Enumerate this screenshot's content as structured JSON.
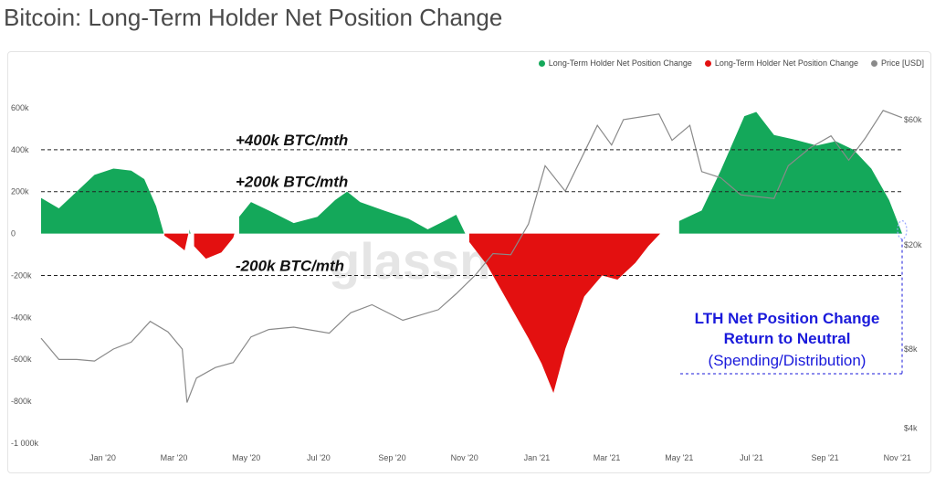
{
  "title": "Bitcoin: Long-Term Holder Net Position Change",
  "watermark": "glassnode",
  "legend": [
    {
      "label": "Long-Term Holder Net Position Change",
      "color": "#14a85a"
    },
    {
      "label": "Long-Term Holder Net Position Change",
      "color": "#e31010"
    },
    {
      "label": "Price [USD]",
      "color": "#8a8a8a"
    }
  ],
  "chart_data": {
    "type": "area",
    "x_ticks": [
      "Jan '20",
      "Mar '20",
      "May '20",
      "Jul '20",
      "Sep '20",
      "Nov '20",
      "Jan '21",
      "Mar '21",
      "May '21",
      "Jul '21",
      "Sep '21",
      "Nov '21"
    ],
    "x_range": [
      "2019-11-10",
      "2021-11-05"
    ],
    "y_left_ticks": [
      "600k",
      "400k",
      "200k",
      "0",
      "-200k",
      "-400k",
      "-600k",
      "-800k",
      "-1 000k"
    ],
    "y_left_range": [
      -1000000,
      700000
    ],
    "y_right_ticks": [
      "$60k",
      "$20k",
      "$8k",
      "$4k"
    ],
    "y_right_range": [
      3500,
      80000
    ],
    "y_right_scale": "log",
    "reference_lines": [
      {
        "value": 400000,
        "label": "+400k BTC/mth"
      },
      {
        "value": 200000,
        "label": "+200k BTC/mth"
      },
      {
        "value": -200000,
        "label": "-200k BTC/mth"
      }
    ],
    "series": [
      {
        "name": "Long-Term Holder Net Position Change",
        "positive_color": "#14a85a",
        "negative_color": "#e31010",
        "points": [
          [
            "2019-11-10",
            170000
          ],
          [
            "2019-11-25",
            120000
          ],
          [
            "2019-12-10",
            200000
          ],
          [
            "2019-12-25",
            280000
          ],
          [
            "2020-01-10",
            310000
          ],
          [
            "2020-01-25",
            300000
          ],
          [
            "2020-02-05",
            260000
          ],
          [
            "2020-02-15",
            130000
          ],
          [
            "2020-02-22",
            -10000
          ],
          [
            "2020-03-01",
            -40000
          ],
          [
            "2020-03-10",
            -80000
          ],
          [
            "2020-03-14",
            20000
          ],
          [
            "2020-03-18",
            -60000
          ],
          [
            "2020-03-28",
            -120000
          ],
          [
            "2020-04-10",
            -90000
          ],
          [
            "2020-04-20",
            -20000
          ],
          [
            "2020-04-25",
            80000
          ],
          [
            "2020-05-05",
            150000
          ],
          [
            "2020-05-20",
            110000
          ],
          [
            "2020-06-10",
            50000
          ],
          [
            "2020-06-30",
            80000
          ],
          [
            "2020-07-15",
            160000
          ],
          [
            "2020-07-25",
            200000
          ],
          [
            "2020-08-05",
            150000
          ],
          [
            "2020-08-25",
            110000
          ],
          [
            "2020-09-15",
            70000
          ],
          [
            "2020-10-01",
            20000
          ],
          [
            "2020-10-15",
            60000
          ],
          [
            "2020-10-25",
            90000
          ],
          [
            "2020-11-05",
            -40000
          ],
          [
            "2020-11-20",
            -150000
          ],
          [
            "2020-12-10",
            -350000
          ],
          [
            "2020-12-25",
            -500000
          ],
          [
            "2021-01-05",
            -620000
          ],
          [
            "2021-01-15",
            -760000
          ],
          [
            "2021-01-25",
            -550000
          ],
          [
            "2021-02-10",
            -300000
          ],
          [
            "2021-02-25",
            -200000
          ],
          [
            "2021-03-10",
            -220000
          ],
          [
            "2021-03-25",
            -140000
          ],
          [
            "2021-04-05",
            -60000
          ],
          [
            "2021-04-15",
            0
          ],
          [
            "2021-05-01",
            60000
          ],
          [
            "2021-05-20",
            110000
          ],
          [
            "2021-06-05",
            300000
          ],
          [
            "2021-06-25",
            560000
          ],
          [
            "2021-07-05",
            580000
          ],
          [
            "2021-07-20",
            470000
          ],
          [
            "2021-08-05",
            450000
          ],
          [
            "2021-08-25",
            420000
          ],
          [
            "2021-09-10",
            440000
          ],
          [
            "2021-09-25",
            400000
          ],
          [
            "2021-10-10",
            310000
          ],
          [
            "2021-10-25",
            160000
          ],
          [
            "2021-11-05",
            0
          ]
        ]
      },
      {
        "name": "Price [USD]",
        "color": "#8a8a8a",
        "points": [
          [
            "2019-11-10",
            8800
          ],
          [
            "2019-11-25",
            7300
          ],
          [
            "2019-12-10",
            7300
          ],
          [
            "2019-12-25",
            7200
          ],
          [
            "2020-01-10",
            8000
          ],
          [
            "2020-01-25",
            8500
          ],
          [
            "2020-02-10",
            10200
          ],
          [
            "2020-02-25",
            9300
          ],
          [
            "2020-03-08",
            8000
          ],
          [
            "2020-03-12",
            5000
          ],
          [
            "2020-03-20",
            6200
          ],
          [
            "2020-04-05",
            6800
          ],
          [
            "2020-04-20",
            7100
          ],
          [
            "2020-05-05",
            8900
          ],
          [
            "2020-05-20",
            9500
          ],
          [
            "2020-06-10",
            9700
          ],
          [
            "2020-07-10",
            9200
          ],
          [
            "2020-07-28",
            11000
          ],
          [
            "2020-08-15",
            11800
          ],
          [
            "2020-09-10",
            10300
          ],
          [
            "2020-10-10",
            11300
          ],
          [
            "2020-10-25",
            13000
          ],
          [
            "2020-11-10",
            15300
          ],
          [
            "2020-11-25",
            18500
          ],
          [
            "2020-12-10",
            18300
          ],
          [
            "2020-12-25",
            24000
          ],
          [
            "2021-01-08",
            40000
          ],
          [
            "2021-01-25",
            32000
          ],
          [
            "2021-02-10",
            45000
          ],
          [
            "2021-02-21",
            57000
          ],
          [
            "2021-03-05",
            48000
          ],
          [
            "2021-03-15",
            60000
          ],
          [
            "2021-04-14",
            63000
          ],
          [
            "2021-04-25",
            50000
          ],
          [
            "2021-05-10",
            57000
          ],
          [
            "2021-05-20",
            38000
          ],
          [
            "2021-06-05",
            36000
          ],
          [
            "2021-06-22",
            31000
          ],
          [
            "2021-07-20",
            30000
          ],
          [
            "2021-08-01",
            40000
          ],
          [
            "2021-08-20",
            47000
          ],
          [
            "2021-09-06",
            52000
          ],
          [
            "2021-09-21",
            42000
          ],
          [
            "2021-10-05",
            51000
          ],
          [
            "2021-10-20",
            65000
          ],
          [
            "2021-11-05",
            61000
          ]
        ]
      }
    ],
    "annotation": {
      "line1": "LTH Net Position Change",
      "line2": "Return to Neutral",
      "line3": "(Spending/Distribution)",
      "color": "#1a1adb"
    }
  }
}
